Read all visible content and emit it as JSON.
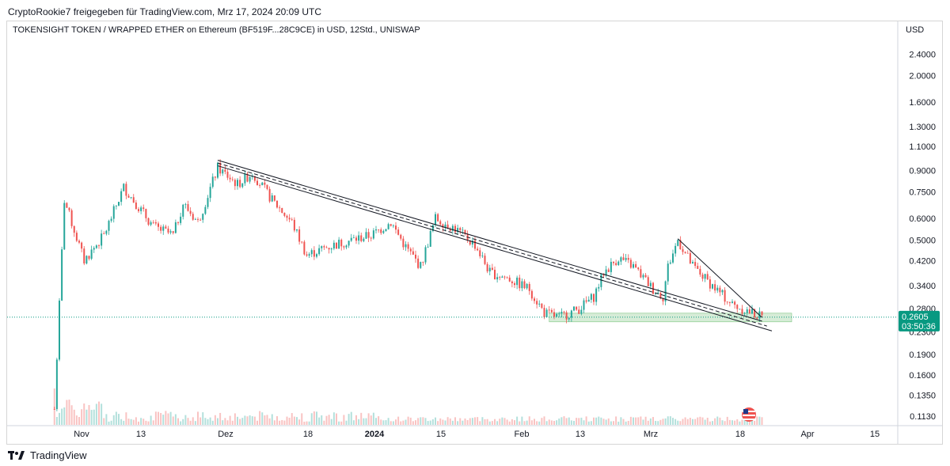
{
  "share_line": "CryptoRookie7 freigegeben für TradingView.com, Mrz 17, 2024 20:09 UTC",
  "footer": {
    "brand": "TradingView"
  },
  "colors": {
    "up": "#26a69a",
    "down": "#ef5350",
    "price_tag": "#089981",
    "zone": "#c8e6c9"
  },
  "chart_data": {
    "type": "candlestick",
    "title": "TOKENSIGHT TOKEN / WRAPPED ETHER on Ethereum (BF519F...28C9CE) in USD, 12Std., UNISWAP",
    "currency": "USD",
    "y_scale": "log",
    "ylim": [
      0.105,
      2.75
    ],
    "y_ticks": [
      "2.4000",
      "2.0000",
      "1.6000",
      "1.3000",
      "1.1000",
      "0.9000",
      "0.7500",
      "0.6000",
      "0.5000",
      "0.4200",
      "0.3400",
      "0.2800",
      "0.2300",
      "0.1900",
      "0.1600",
      "0.1350",
      "0.1130"
    ],
    "x_ticks": [
      {
        "label": "Nov",
        "bold": false
      },
      {
        "label": "13",
        "bold": false
      },
      {
        "label": "Dez",
        "bold": false
      },
      {
        "label": "18",
        "bold": false
      },
      {
        "label": "2024",
        "bold": true
      },
      {
        "label": "15",
        "bold": false
      },
      {
        "label": "Feb",
        "bold": false
      },
      {
        "label": "13",
        "bold": false
      },
      {
        "label": "Mrz",
        "bold": false
      },
      {
        "label": "18",
        "bold": false
      },
      {
        "label": "Apr",
        "bold": false
      },
      {
        "label": "15",
        "bold": false
      }
    ],
    "last_price": "0.2605",
    "countdown": "03:50:36",
    "price_path": [
      [
        "2023-10-27",
        0.12
      ],
      [
        "2023-10-29",
        0.7
      ],
      [
        "2023-11-02",
        0.42
      ],
      [
        "2023-11-06",
        0.52
      ],
      [
        "2023-11-10",
        0.78
      ],
      [
        "2023-11-16",
        0.56
      ],
      [
        "2023-11-20",
        0.52
      ],
      [
        "2023-11-22",
        0.68
      ],
      [
        "2023-11-25",
        0.58
      ],
      [
        "2023-11-29",
        0.92
      ],
      [
        "2023-12-03",
        0.8
      ],
      [
        "2023-12-06",
        0.88
      ],
      [
        "2023-12-10",
        0.7
      ],
      [
        "2023-12-14",
        0.58
      ],
      [
        "2023-12-17",
        0.44
      ],
      [
        "2023-12-21",
        0.47
      ],
      [
        "2023-12-26",
        0.5
      ],
      [
        "2023-12-30",
        0.52
      ],
      [
        "2024-01-03",
        0.58
      ],
      [
        "2024-01-06",
        0.47
      ],
      [
        "2024-01-09",
        0.4
      ],
      [
        "2024-01-12",
        0.6
      ],
      [
        "2024-01-16",
        0.55
      ],
      [
        "2024-01-20",
        0.48
      ],
      [
        "2024-01-23",
        0.38
      ],
      [
        "2024-01-27",
        0.36
      ],
      [
        "2024-01-31",
        0.33
      ],
      [
        "2024-02-03",
        0.27
      ],
      [
        "2024-02-06",
        0.26
      ],
      [
        "2024-02-10",
        0.28
      ],
      [
        "2024-02-13",
        0.31
      ],
      [
        "2024-02-15",
        0.38
      ],
      [
        "2024-02-18",
        0.43
      ],
      [
        "2024-02-21",
        0.4
      ],
      [
        "2024-02-25",
        0.33
      ],
      [
        "2024-02-27",
        0.31
      ],
      [
        "2024-02-28",
        0.4
      ],
      [
        "2024-03-01",
        0.5
      ],
      [
        "2024-03-04",
        0.4
      ],
      [
        "2024-03-08",
        0.34
      ],
      [
        "2024-03-12",
        0.29
      ],
      [
        "2024-03-16",
        0.27
      ],
      [
        "2024-03-18",
        0.2605
      ]
    ],
    "channel_upper": [
      [
        "2023-11-29",
        0.98
      ],
      [
        "2024-03-18",
        0.252
      ]
    ],
    "channel_lower": [
      [
        "2023-11-29",
        0.935
      ],
      [
        "2024-03-20",
        0.232
      ]
    ],
    "wedge_line": [
      [
        "2024-03-01",
        0.505
      ],
      [
        "2024-03-18",
        0.26
      ]
    ],
    "support_zone": [
      [
        "2024-02-04",
        0.2505
      ],
      [
        "2024-03-24",
        0.2695
      ]
    ]
  }
}
